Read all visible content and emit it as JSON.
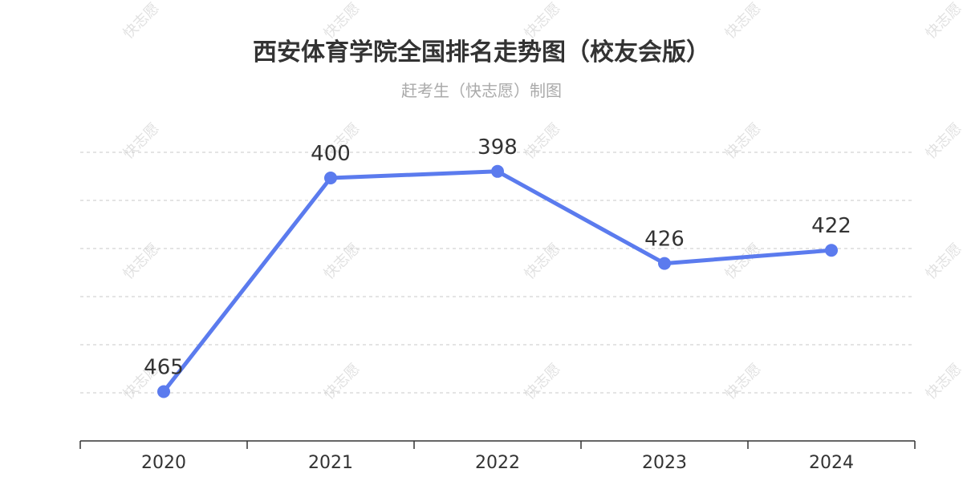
{
  "title": "西安体育学院全国排名走势图（校友会版）",
  "subtitle": "赶考生（快志愿）制图",
  "watermark_text": "快志愿",
  "colors": {
    "line": "#5B7BEE",
    "grid": "#c8c8c8",
    "axis": "#333333",
    "text": "#333333",
    "subtitle": "#aaaaaa"
  },
  "chart_data": {
    "type": "line",
    "categories": [
      "2020",
      "2021",
      "2022",
      "2023",
      "2024"
    ],
    "series": [
      {
        "values": [
          465,
          400,
          398,
          426,
          422
        ]
      }
    ],
    "y_inverted": true,
    "ylim": [
      380,
      480
    ],
    "grid": "horizontal-dashed",
    "legend": "none"
  }
}
